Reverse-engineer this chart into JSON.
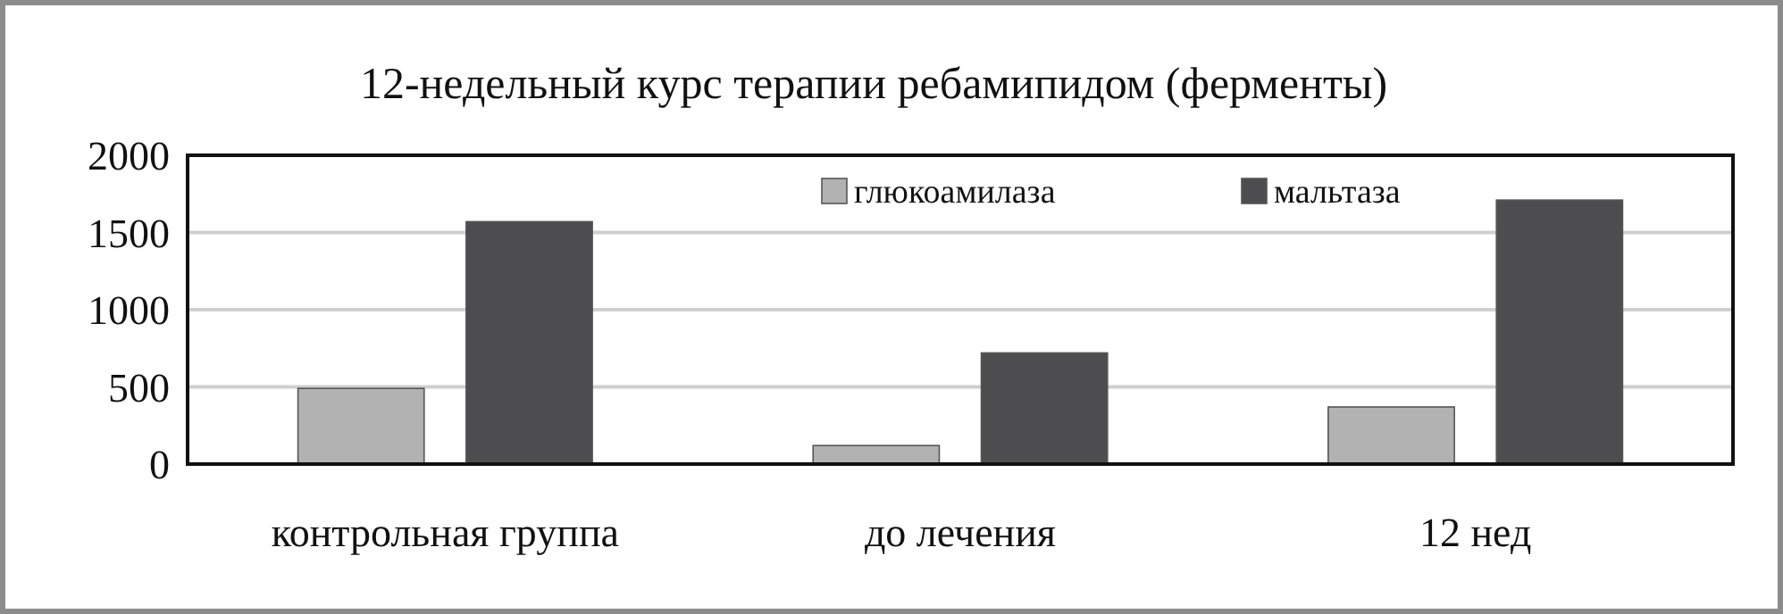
{
  "chart_data": {
    "type": "bar",
    "title": "12-недельный курс терапии ребамипидом (ферменты)",
    "categories": [
      "контрольная группа",
      "до лечения",
      "12 нед"
    ],
    "series": [
      {
        "name": "глюкоамилаза",
        "color": "#b2b2b2",
        "values": [
          490,
          120,
          370
        ]
      },
      {
        "name": "мальтаза",
        "color": "#4d4d4f",
        "values": [
          1570,
          720,
          1710
        ]
      }
    ],
    "ylim": [
      0,
      2000
    ],
    "yticks": [
      0,
      500,
      1000,
      1500,
      2000
    ],
    "grid": "y",
    "legend": "top"
  }
}
